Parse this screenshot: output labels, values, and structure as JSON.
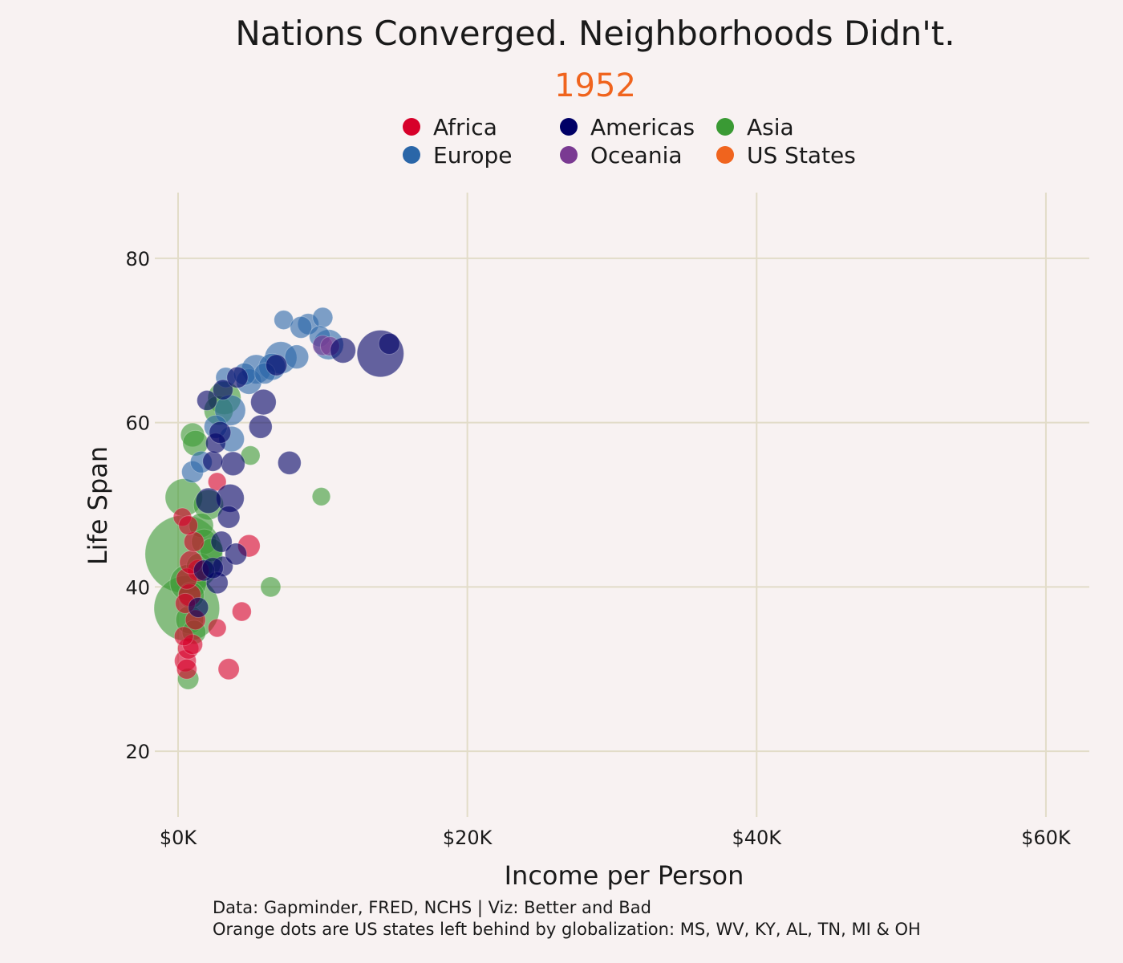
{
  "chart_data": {
    "type": "scatter",
    "title": "Nations Converged. Neighborhoods Didn't.",
    "subtitle": "1952",
    "xlabel": "Income per Person",
    "ylabel": "Life Span",
    "xlim": [
      -500,
      63000
    ],
    "ylim": [
      12,
      88
    ],
    "xticks": [
      {
        "value": 0,
        "label": "$0K"
      },
      {
        "value": 20000,
        "label": "$20K"
      },
      {
        "value": 40000,
        "label": "$40K"
      },
      {
        "value": 60000,
        "label": "$60K"
      }
    ],
    "yticks": [
      {
        "value": 20,
        "label": "20"
      },
      {
        "value": 40,
        "label": "40"
      },
      {
        "value": 60,
        "label": "60"
      },
      {
        "value": 80,
        "label": "80"
      }
    ],
    "grid": true,
    "legend_position": "top",
    "legend": [
      {
        "name": "Africa",
        "color": "#d7002a"
      },
      {
        "name": "Americas",
        "color": "#000066"
      },
      {
        "name": "Asia",
        "color": "#3a9a34"
      },
      {
        "name": "Europe",
        "color": "#2a66a8"
      },
      {
        "name": "Oceania",
        "color": "#7a3a92"
      },
      {
        "name": "US States",
        "color": "#f0641e"
      }
    ],
    "caption_lines": [
      "Data: Gapminder, FRED, NCHS | Viz: Better and Bad",
      "Orange dots are US states left behind by globalization: MS, WV, KY, AL, TN, MI & OH"
    ],
    "series": [
      {
        "name": "Asia",
        "color": "#3a9a34",
        "points": [
          {
            "x": 400,
            "y": 44,
            "size": 556
          },
          {
            "x": 600,
            "y": 37.4,
            "size": 372
          },
          {
            "x": 700,
            "y": 40.5,
            "size": 80
          },
          {
            "x": 400,
            "y": 50.9,
            "size": 86
          },
          {
            "x": 1000,
            "y": 58.5,
            "size": 20
          },
          {
            "x": 3200,
            "y": 63.0,
            "size": 60
          },
          {
            "x": 2800,
            "y": 61.5,
            "size": 40
          },
          {
            "x": 1200,
            "y": 57.5,
            "size": 25
          },
          {
            "x": 700,
            "y": 28.8,
            "size": 12
          },
          {
            "x": 5000,
            "y": 56.0,
            "size": 8
          },
          {
            "x": 9900,
            "y": 51.0,
            "size": 6
          },
          {
            "x": 6400,
            "y": 40.0,
            "size": 10
          },
          {
            "x": 2100,
            "y": 50.0,
            "size": 45
          },
          {
            "x": 800,
            "y": 36.0,
            "size": 35
          },
          {
            "x": 1600,
            "y": 47.5,
            "size": 22
          },
          {
            "x": 1800,
            "y": 45.5,
            "size": 25
          },
          {
            "x": 1500,
            "y": 42.5,
            "size": 30
          },
          {
            "x": 900,
            "y": 39.0,
            "size": 28
          },
          {
            "x": 2300,
            "y": 44.5,
            "size": 18
          },
          {
            "x": 1100,
            "y": 34.5,
            "size": 20
          }
        ]
      },
      {
        "name": "Europe",
        "color": "#2a66a8",
        "points": [
          {
            "x": 7300,
            "y": 72.5,
            "size": 8
          },
          {
            "x": 9000,
            "y": 72.0,
            "size": 12
          },
          {
            "x": 10000,
            "y": 72.8,
            "size": 10
          },
          {
            "x": 8500,
            "y": 71.6,
            "size": 14
          },
          {
            "x": 10400,
            "y": 69.5,
            "size": 45
          },
          {
            "x": 7100,
            "y": 67.9,
            "size": 55
          },
          {
            "x": 5400,
            "y": 66.5,
            "size": 40
          },
          {
            "x": 8200,
            "y": 68.0,
            "size": 20
          },
          {
            "x": 6500,
            "y": 66.8,
            "size": 30
          },
          {
            "x": 4900,
            "y": 65.0,
            "size": 25
          },
          {
            "x": 3300,
            "y": 65.5,
            "size": 10
          },
          {
            "x": 3600,
            "y": 61.5,
            "size": 48
          },
          {
            "x": 3700,
            "y": 58.0,
            "size": 25
          },
          {
            "x": 2600,
            "y": 59.5,
            "size": 18
          },
          {
            "x": 1000,
            "y": 54.0,
            "size": 14
          },
          {
            "x": 1600,
            "y": 55.2,
            "size": 14
          },
          {
            "x": 4600,
            "y": 65.9,
            "size": 15
          },
          {
            "x": 9800,
            "y": 70.5,
            "size": 12
          },
          {
            "x": 6000,
            "y": 66.0,
            "size": 12
          }
        ]
      },
      {
        "name": "Oceania",
        "color": "#7a3a92",
        "points": [
          {
            "x": 10000,
            "y": 69.4,
            "size": 10
          },
          {
            "x": 10500,
            "y": 69.3,
            "size": 8
          }
        ]
      },
      {
        "name": "Africa",
        "color": "#d7002a",
        "points": [
          {
            "x": 3500,
            "y": 30.0,
            "size": 12
          },
          {
            "x": 4400,
            "y": 37.0,
            "size": 8
          },
          {
            "x": 4900,
            "y": 45.0,
            "size": 15
          },
          {
            "x": 2700,
            "y": 35.0,
            "size": 6
          },
          {
            "x": 2700,
            "y": 52.8,
            "size": 6
          },
          {
            "x": 500,
            "y": 31.0,
            "size": 14
          },
          {
            "x": 700,
            "y": 32.5,
            "size": 12
          },
          {
            "x": 1000,
            "y": 33.0,
            "size": 10
          },
          {
            "x": 400,
            "y": 34.0,
            "size": 8
          },
          {
            "x": 300,
            "y": 48.5,
            "size": 6
          },
          {
            "x": 600,
            "y": 30.0,
            "size": 10
          },
          {
            "x": 1200,
            "y": 36.0,
            "size": 10
          },
          {
            "x": 800,
            "y": 39.0,
            "size": 16
          },
          {
            "x": 1400,
            "y": 42.0,
            "size": 14
          },
          {
            "x": 600,
            "y": 41.0,
            "size": 12
          },
          {
            "x": 900,
            "y": 43.0,
            "size": 18
          },
          {
            "x": 500,
            "y": 38.0,
            "size": 10
          },
          {
            "x": 1100,
            "y": 45.5,
            "size": 10
          },
          {
            "x": 700,
            "y": 47.5,
            "size": 8
          }
        ]
      },
      {
        "name": "Americas",
        "color": "#000066",
        "points": [
          {
            "x": 13990,
            "y": 68.4,
            "size": 160
          },
          {
            "x": 11400,
            "y": 68.8,
            "size": 25
          },
          {
            "x": 14600,
            "y": 69.6,
            "size": 12
          },
          {
            "x": 5900,
            "y": 62.5,
            "size": 25
          },
          {
            "x": 5700,
            "y": 59.5,
            "size": 18
          },
          {
            "x": 7700,
            "y": 55.1,
            "size": 18
          },
          {
            "x": 3800,
            "y": 55.0,
            "size": 20
          },
          {
            "x": 3600,
            "y": 50.8,
            "size": 35
          },
          {
            "x": 3500,
            "y": 48.5,
            "size": 15
          },
          {
            "x": 2400,
            "y": 55.3,
            "size": 10
          },
          {
            "x": 2600,
            "y": 57.5,
            "size": 10
          },
          {
            "x": 2900,
            "y": 58.8,
            "size": 14
          },
          {
            "x": 2000,
            "y": 62.7,
            "size": 10
          },
          {
            "x": 3100,
            "y": 64.0,
            "size": 10
          },
          {
            "x": 4100,
            "y": 65.5,
            "size": 12
          },
          {
            "x": 3000,
            "y": 45.5,
            "size": 12
          },
          {
            "x": 3100,
            "y": 42.5,
            "size": 10
          },
          {
            "x": 2700,
            "y": 40.5,
            "size": 14
          },
          {
            "x": 4000,
            "y": 44.0,
            "size": 14
          },
          {
            "x": 2100,
            "y": 50.5,
            "size": 25
          },
          {
            "x": 1800,
            "y": 42.0,
            "size": 12
          },
          {
            "x": 1400,
            "y": 37.5,
            "size": 10
          },
          {
            "x": 2400,
            "y": 42.3,
            "size": 12
          },
          {
            "x": 6800,
            "y": 67.0,
            "size": 12
          }
        ]
      }
    ]
  }
}
